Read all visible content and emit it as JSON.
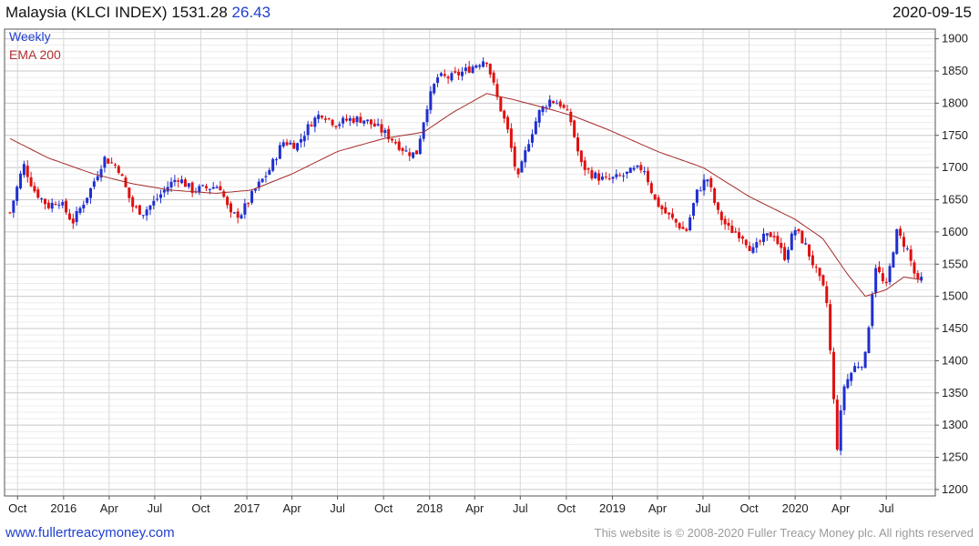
{
  "header": {
    "title": "Malaysia (KLCI INDEX)",
    "price": "1531.28",
    "change": "26.43",
    "date": "2020-09-15"
  },
  "footer": {
    "link": "www.fullertreacymoney.com",
    "copyright": "This website is © 2008-2020 Fuller Treacy Money plc. All rights reserved"
  },
  "colors": {
    "up": "#1f2fd0",
    "down": "#e01010",
    "ema": "#a52a2a",
    "grid": "#dcdcdc"
  },
  "chart_data": {
    "type": "candlestick",
    "frequency": "Weekly",
    "legend": [
      "Weekly",
      "EMA 200"
    ],
    "ylim": [
      1190,
      1915
    ],
    "yticks": [
      1200,
      1250,
      1300,
      1350,
      1400,
      1450,
      1500,
      1550,
      1600,
      1650,
      1700,
      1750,
      1800,
      1850,
      1900
    ],
    "xticks": [
      {
        "label": "Oct",
        "date": "2015-10-01"
      },
      {
        "label": "2016",
        "date": "2016-01-01"
      },
      {
        "label": "Apr",
        "date": "2016-04-01"
      },
      {
        "label": "Jul",
        "date": "2016-07-01"
      },
      {
        "label": "Oct",
        "date": "2016-10-01"
      },
      {
        "label": "2017",
        "date": "2017-01-01"
      },
      {
        "label": "Apr",
        "date": "2017-04-01"
      },
      {
        "label": "Jul",
        "date": "2017-07-01"
      },
      {
        "label": "Oct",
        "date": "2017-10-01"
      },
      {
        "label": "2018",
        "date": "2018-01-01"
      },
      {
        "label": "Apr",
        "date": "2018-04-01"
      },
      {
        "label": "Jul",
        "date": "2018-07-01"
      },
      {
        "label": "Oct",
        "date": "2018-10-01"
      },
      {
        "label": "2019",
        "date": "2019-01-01"
      },
      {
        "label": "Apr",
        "date": "2019-04-01"
      },
      {
        "label": "Jul",
        "date": "2019-07-01"
      },
      {
        "label": "Oct",
        "date": "2019-10-01"
      },
      {
        "label": "2020",
        "date": "2020-01-01"
      },
      {
        "label": "Apr",
        "date": "2020-04-01"
      },
      {
        "label": "Jul",
        "date": "2020-07-01"
      }
    ],
    "date_range": [
      "2015-09-16",
      "2020-09-15"
    ],
    "close_keypoints": [
      [
        "2015-09-16",
        1630
      ],
      [
        "2015-10-13",
        1705
      ],
      [
        "2015-11-03",
        1665
      ],
      [
        "2015-12-01",
        1640
      ],
      [
        "2015-12-22",
        1650
      ],
      [
        "2016-01-19",
        1615
      ],
      [
        "2016-02-23",
        1665
      ],
      [
        "2016-03-22",
        1715
      ],
      [
        "2016-04-19",
        1700
      ],
      [
        "2016-05-17",
        1640
      ],
      [
        "2016-06-07",
        1630
      ],
      [
        "2016-06-28",
        1645
      ],
      [
        "2016-07-26",
        1670
      ],
      [
        "2016-08-16",
        1685
      ],
      [
        "2016-09-13",
        1665
      ],
      [
        "2016-10-11",
        1668
      ],
      [
        "2016-11-08",
        1672
      ],
      [
        "2016-11-29",
        1625
      ],
      [
        "2016-12-20",
        1628
      ],
      [
        "2017-01-17",
        1665
      ],
      [
        "2017-02-14",
        1695
      ],
      [
        "2017-03-14",
        1740
      ],
      [
        "2017-04-11",
        1735
      ],
      [
        "2017-05-09",
        1770
      ],
      [
        "2017-05-30",
        1785
      ],
      [
        "2017-06-27",
        1768
      ],
      [
        "2017-07-25",
        1775
      ],
      [
        "2017-08-22",
        1775
      ],
      [
        "2017-09-19",
        1762
      ],
      [
        "2017-10-17",
        1745
      ],
      [
        "2017-11-14",
        1725
      ],
      [
        "2017-12-05",
        1720
      ],
      [
        "2017-12-26",
        1795
      ],
      [
        "2018-01-16",
        1840
      ],
      [
        "2018-02-13",
        1840
      ],
      [
        "2018-03-13",
        1850
      ],
      [
        "2018-04-03",
        1860
      ],
      [
        "2018-04-24",
        1870
      ],
      [
        "2018-05-15",
        1810
      ],
      [
        "2018-06-05",
        1760
      ],
      [
        "2018-06-26",
        1680
      ],
      [
        "2018-07-17",
        1740
      ],
      [
        "2018-08-07",
        1785
      ],
      [
        "2018-08-28",
        1805
      ],
      [
        "2018-09-18",
        1800
      ],
      [
        "2018-10-09",
        1775
      ],
      [
        "2018-10-30",
        1705
      ],
      [
        "2018-11-20",
        1690
      ],
      [
        "2018-12-18",
        1680
      ],
      [
        "2019-01-15",
        1685
      ],
      [
        "2019-02-12",
        1695
      ],
      [
        "2019-03-05",
        1700
      ],
      [
        "2019-03-26",
        1650
      ],
      [
        "2019-04-16",
        1630
      ],
      [
        "2019-05-07",
        1615
      ],
      [
        "2019-05-28",
        1600
      ],
      [
        "2019-06-18",
        1660
      ],
      [
        "2019-07-09",
        1685
      ],
      [
        "2019-07-30",
        1630
      ],
      [
        "2019-08-20",
        1605
      ],
      [
        "2019-09-17",
        1595
      ],
      [
        "2019-10-08",
        1570
      ],
      [
        "2019-10-29",
        1590
      ],
      [
        "2019-11-19",
        1598
      ],
      [
        "2019-12-10",
        1560
      ],
      [
        "2019-12-31",
        1605
      ],
      [
        "2020-01-21",
        1580
      ],
      [
        "2020-02-11",
        1540
      ],
      [
        "2020-03-03",
        1500
      ],
      [
        "2020-03-17",
        1350
      ],
      [
        "2020-03-24",
        1260
      ],
      [
        "2020-04-07",
        1360
      ],
      [
        "2020-04-28",
        1390
      ],
      [
        "2020-05-19",
        1400
      ],
      [
        "2020-06-09",
        1550
      ],
      [
        "2020-06-30",
        1510
      ],
      [
        "2020-07-21",
        1600
      ],
      [
        "2020-08-11",
        1575
      ],
      [
        "2020-09-01",
        1520
      ],
      [
        "2020-09-15",
        1531
      ]
    ],
    "ema200_keypoints": [
      [
        "2015-09-16",
        1745
      ],
      [
        "2015-12-01",
        1715
      ],
      [
        "2016-03-01",
        1690
      ],
      [
        "2016-05-17",
        1675
      ],
      [
        "2016-08-01",
        1665
      ],
      [
        "2016-11-01",
        1660
      ],
      [
        "2017-01-10",
        1665
      ],
      [
        "2017-04-01",
        1690
      ],
      [
        "2017-07-01",
        1725
      ],
      [
        "2017-10-01",
        1745
      ],
      [
        "2017-12-20",
        1755
      ],
      [
        "2018-02-15",
        1785
      ],
      [
        "2018-04-25",
        1815
      ],
      [
        "2018-06-20",
        1805
      ],
      [
        "2018-09-01",
        1790
      ],
      [
        "2018-10-15",
        1780
      ],
      [
        "2018-12-20",
        1760
      ],
      [
        "2019-04-01",
        1725
      ],
      [
        "2019-07-01",
        1700
      ],
      [
        "2019-10-01",
        1655
      ],
      [
        "2019-12-31",
        1620
      ],
      [
        "2020-02-25",
        1590
      ],
      [
        "2020-04-14",
        1535
      ],
      [
        "2020-05-20",
        1500
      ],
      [
        "2020-06-30",
        1510
      ],
      [
        "2020-08-05",
        1530
      ],
      [
        "2020-09-15",
        1525
      ]
    ]
  }
}
